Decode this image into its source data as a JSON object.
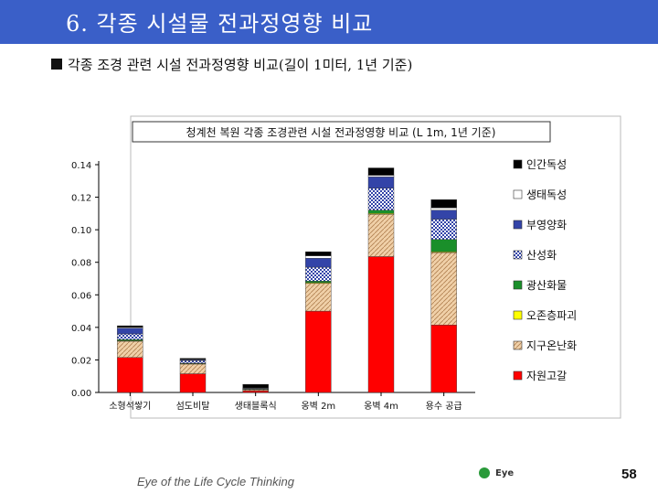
{
  "page": {
    "title": "6. 각종 시설물 전과정영향 비교",
    "subtitle": "각종 조경 관련 시설 전과정영향 비교(길이 1미터, 1년 기준)",
    "footer_text": "Eye of the Life Cycle Thinking",
    "logo_text": "Eye",
    "page_number": "58"
  },
  "colors": {
    "title_bar": "#3a5fc8",
    "인간독성": "#000000",
    "생태독성": "#ffffff",
    "부영양화": "#3344a8",
    "산성화": "#aeb8dd",
    "광산화물": "#1a8f2a",
    "오존층파괴": "#ffff00",
    "지구온난화": "#f0d0a8",
    "자원고갈": "#ff0000"
  },
  "chart_data": {
    "type": "bar",
    "stacked": true,
    "title": "청계천 복원 각종 조경관련 시설 전과정영향 비교 (L 1m, 1년 기준)",
    "categories": [
      "소형석쌓기",
      "섬도비탈",
      "생태블록식",
      "옹벽 2m",
      "옹벽 4m",
      "용수 공급"
    ],
    "ylim": [
      0,
      0.14
    ],
    "yticks": [
      "0.00",
      "0.02",
      "0.04",
      "0.06",
      "0.08",
      "0.10",
      "0.12",
      "0.14"
    ],
    "series": [
      {
        "name": "자원고갈",
        "values": [
          0.0215,
          0.0115,
          0.001,
          0.05,
          0.0835,
          0.0415
        ]
      },
      {
        "name": "지구온난화",
        "values": [
          0.01,
          0.006,
          0.0008,
          0.017,
          0.026,
          0.0445
        ]
      },
      {
        "name": "오존층파괴",
        "values": [
          0.0003,
          0.0002,
          0.0001,
          0.0005,
          0.0005,
          0.0005
        ]
      },
      {
        "name": "광산화물",
        "values": [
          0.0007,
          0.0003,
          0.0001,
          0.001,
          0.002,
          0.0075
        ]
      },
      {
        "name": "산성화",
        "values": [
          0.0035,
          0.0015,
          0.0003,
          0.0085,
          0.0135,
          0.0125
        ]
      },
      {
        "name": "부영양화",
        "values": [
          0.0035,
          0.0005,
          0.0002,
          0.0055,
          0.007,
          0.0055
        ]
      },
      {
        "name": "생태독성",
        "values": [
          0.0005,
          0.0003,
          0.0003,
          0.0015,
          0.001,
          0.0015
        ]
      },
      {
        "name": "인간독성",
        "values": [
          0.001,
          0.0007,
          0.0022,
          0.0025,
          0.0045,
          0.005
        ]
      }
    ],
    "legend": {
      "position": "right",
      "order": [
        "인간독성",
        "생태독성",
        "부영양화",
        "산성화",
        "광산화물",
        "오존층파괴",
        "지구온난화",
        "자원고갈"
      ]
    },
    "grid": false
  }
}
